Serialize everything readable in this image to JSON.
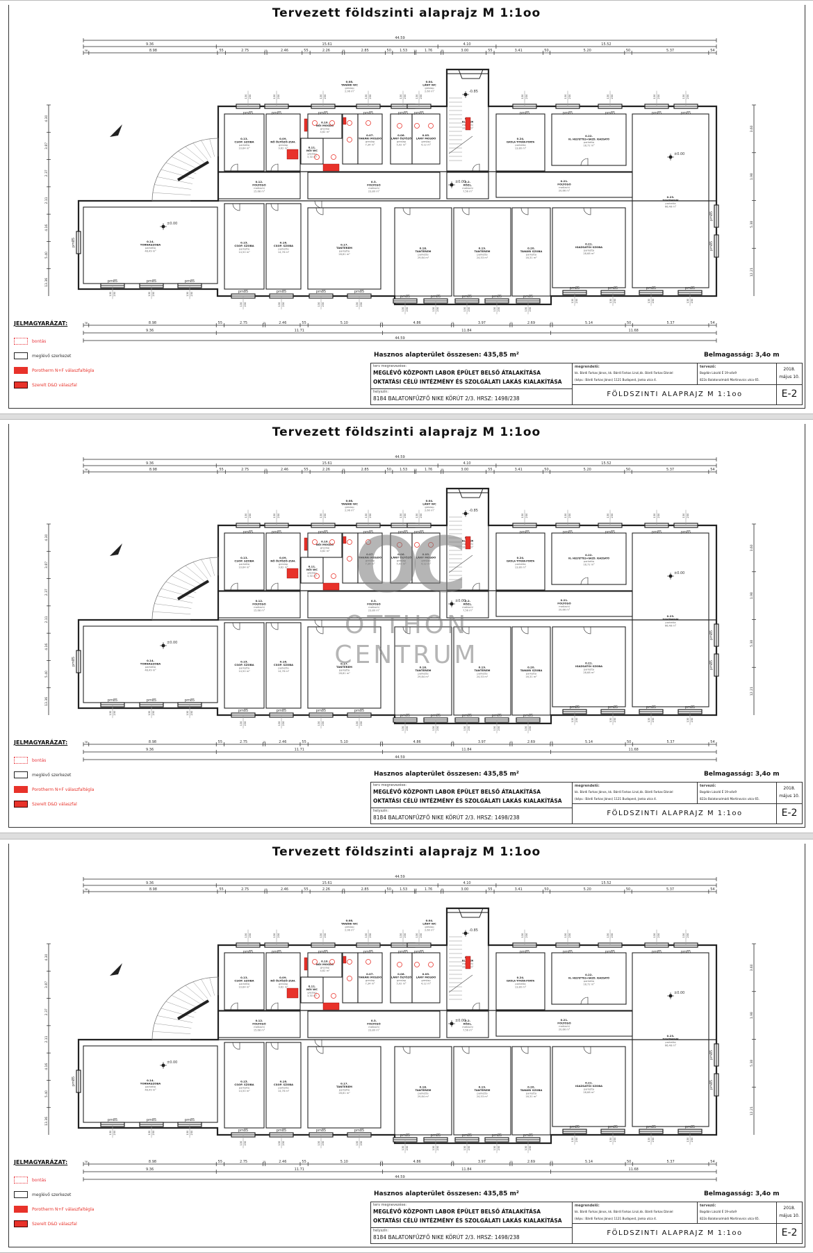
{
  "title": "Tervezett földszinti alaprajz M 1:1oo",
  "dimensions": {
    "top": [
      [
        "44.59"
      ],
      [
        "9.36",
        "15.61",
        "4.10",
        "15.52"
      ],
      [
        "38",
        "8.98",
        "55",
        "2.75",
        "15",
        "2.46",
        "55",
        "2.26",
        "15",
        "2.85",
        "50",
        "1.53",
        "10",
        "1.76",
        "15",
        "3.00",
        "55",
        "3.41",
        "50",
        "5.20",
        "50",
        "5.37",
        "54"
      ]
    ],
    "bottom": [
      [
        "38",
        "8.98",
        "55",
        "2.75",
        "15",
        "2.46",
        "55",
        "5.10",
        "15",
        "4.86",
        "15",
        "3.97",
        "15",
        "2.69",
        "15",
        "5.14",
        "50",
        "5.37",
        "54"
      ],
      [
        "9.36",
        "11.71",
        "11.84",
        "11.68"
      ],
      [
        "44.59"
      ]
    ],
    "left": [
      "4.30",
      "3.87",
      "2.37",
      "2.11",
      "4.16",
      "5.40",
      "13.36"
    ],
    "right": [
      "3.60",
      "1.98",
      "5.38",
      "12.21"
    ]
  },
  "rooms": [
    {
      "id": "0.13.",
      "name": "CSOP. SZOBA",
      "floor": "parketta",
      "area": "10,64 m²"
    },
    {
      "id": "0.09.",
      "name": "NŐ ÖLTÖZŐ-ZUH.",
      "floor": "greslap",
      "area": "9,62 m²"
    },
    {
      "id": "0.10.",
      "name": "NŐI MOSDÓ",
      "floor": "greslap",
      "area": "4,62 m²"
    },
    {
      "id": "0.11.",
      "name": "NŐI WC",
      "floor": "greslap",
      "area": "3,30 m²"
    },
    {
      "id": "0.08.",
      "name": "TANÁRI WC",
      "floor": "greslap",
      "area": "2,96 m²"
    },
    {
      "id": "0.07.",
      "name": "TANÁRI MOSDÓ",
      "floor": "greslap",
      "area": "7,34 m²"
    },
    {
      "id": "0.06.",
      "name": "LÁNY ÖLTÖZŐ",
      "floor": "greslap",
      "area": "5,92 m²"
    },
    {
      "id": "0.05.",
      "name": "LÁNY MOSDÓ",
      "floor": "greslap",
      "area": "4,12 m²"
    },
    {
      "id": "0.04.",
      "name": "LÁNY WC",
      "floor": "greslap",
      "area": "2,60 m²"
    },
    {
      "id": "0.1.",
      "name": "ELŐTÉR",
      "floor": "metlachi",
      "area": "10,08 m²"
    },
    {
      "id": "0.2.",
      "name": "KÖZL.",
      "floor": "metlachi",
      "area": "7,56 m²"
    },
    {
      "id": "0.12.",
      "name": "FOLYOSÓ",
      "floor": "metlachi",
      "area": "15,68 m²"
    },
    {
      "id": "0.3.",
      "name": "FOLYOSÓ",
      "floor": "metlachi",
      "area": "23,80 m²"
    },
    {
      "id": "0.24.",
      "name": "ISKOLA TITKÁR-PORTA",
      "floor": "parketta",
      "area": "13,80 m²"
    },
    {
      "id": "0.22.",
      "name": "IG. HELYETTES+GAZD. IGAZGATÓ",
      "floor": "parketta",
      "area": "18,72 m²"
    },
    {
      "id": "0.21.",
      "name": "FOLYOSÓ",
      "floor": "metlachi",
      "area": "20,66 m²"
    },
    {
      "id": "0.23.",
      "name": "TANTEREM",
      "floor": "parketta",
      "area": "66,48 m²"
    },
    {
      "id": "0.14.",
      "name": "TORNASZOBA",
      "floor": "parketta",
      "area": "48,49 m²"
    },
    {
      "id": "0.15.",
      "name": "CSOP. SZOBA",
      "floor": "parketta",
      "area": "14,50 m²"
    },
    {
      "id": "0.16.",
      "name": "CSOP. SZOBA",
      "floor": "parketta",
      "area": "14,76 m²"
    },
    {
      "id": "0.17.",
      "name": "TANTEREM",
      "floor": "parketta",
      "area": "28,81 m²"
    },
    {
      "id": "0.18.",
      "name": "TANTEREM",
      "floor": "parketta",
      "area": "29,84 m²"
    },
    {
      "id": "0.19.",
      "name": "TANTEREM",
      "floor": "parketta",
      "area": "24,53 m²"
    },
    {
      "id": "0.20.",
      "name": "TANÁRI SZOBA",
      "floor": "parketta",
      "area": "16,31 m²"
    },
    {
      "id": "0.21.",
      "name": "IGAZGATÓI SZOBA",
      "floor": "parketta",
      "area": "28,68 m²"
    }
  ],
  "windows": {
    "label": "pm85",
    "sill": "130",
    "head": "230"
  },
  "levels": {
    "entry": "-0.85",
    "floor": "±0.00"
  },
  "legend": {
    "title": "JELMAGYARÁZAT:",
    "items": [
      {
        "label": "bontás",
        "style": "dotted",
        "color": "#e8323a"
      },
      {
        "label": "meglévő szerkezet",
        "style": "outline",
        "color": "#222222"
      },
      {
        "label": "Porotherm N+F válaszfaltégla",
        "style": "fill",
        "color": "#e8322a"
      },
      {
        "label": "Szerelt D&D válaszfal",
        "style": "fill-outlined",
        "color": "#e8322a"
      }
    ]
  },
  "summary": {
    "usable_area": "Hasznos alapterület összesen: 435,85 m²",
    "ceiling_height": "Belmagasság: 3,4o m"
  },
  "title_block": {
    "plan_name_caption": "terv megnevezése:",
    "plan_name_1": "MEGLÉVŐ KÖZPONTI LABOR ÉPÜLET BELSŐ ÁTALAKÍTÁSA",
    "plan_name_2": "OKTATÁSI CÉLÚ INTÉZMÉNY ÉS SZOLGÁLATI LAKÁS KIALAKÍTÁSA",
    "location_caption": "helyszín:",
    "location": "8184 BALATONFŰZFŐ NIKE KÖRÚT 2/3. HRSZ: 1498/238",
    "client_caption": "megrendelő:",
    "client_1": "kk. Bárdi Farkas János, kk. Bárdi Farkas Linzi,kk. Bárdi Farkas Dániel",
    "client_2": "(képv.: Bárdi Farkas János) 1121 Budapest, Janka utca 4.",
    "designer_caption": "tervező:",
    "designer_1": "Bogdán László É 19-o4o9",
    "designer_2": "822o Balatonalmádi Martinovics utca 65.",
    "date_1": "2018.",
    "date_2": "május 10.",
    "sheet_title": "FÖLDSZINTI ALAPRAJZ M 1:1oo",
    "sheet_no": "E-2"
  },
  "watermark": {
    "logo": "OC",
    "text_1": "OTTHON",
    "text_2": "CENTRUM"
  },
  "colors": {
    "line": "#222222",
    "new_wall": "#e8322a",
    "background": "#dedede"
  }
}
